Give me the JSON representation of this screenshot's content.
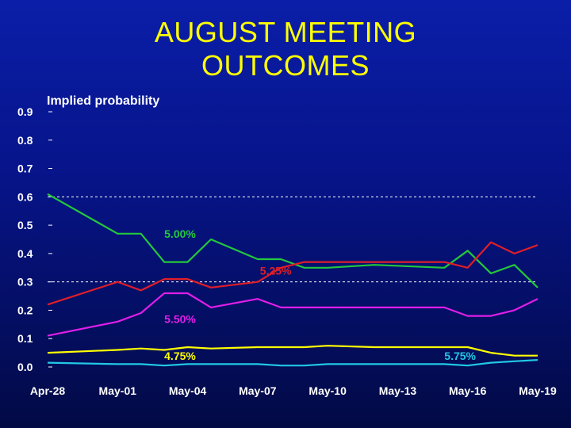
{
  "title_lines": [
    "AUGUST MEETING",
    "OUTCOMES"
  ],
  "chart_data": {
    "type": "line",
    "title": "AUGUST MEETING OUTCOMES",
    "ylabel": "Implied probability",
    "xlabel": "",
    "x_tick_labels": [
      "Apr-28",
      "May-01",
      "May-04",
      "May-07",
      "May-10",
      "May-13",
      "May-16",
      "May-19"
    ],
    "x_tick_days": [
      0,
      3,
      6,
      9,
      12,
      15,
      18,
      21
    ],
    "y_tick_labels": [
      "0.0",
      "0.1",
      "0.2",
      "0.3",
      "0.4",
      "0.5",
      "0.6",
      "0.7",
      "0.8",
      "0.9"
    ],
    "ylim": [
      0,
      0.9
    ],
    "xlim": [
      0,
      21
    ],
    "grid": "dashed horizontal at 0.3 and 0.6",
    "x_days": [
      0,
      3,
      4,
      5,
      6,
      7,
      9,
      10,
      11,
      12,
      14,
      17,
      18,
      19,
      20,
      21
    ],
    "series": [
      {
        "name": "5.00%",
        "color": "#22c83c",
        "values": [
          0.61,
          0.47,
          0.47,
          0.37,
          0.37,
          0.45,
          0.38,
          0.38,
          0.35,
          0.35,
          0.36,
          0.35,
          0.41,
          0.33,
          0.36,
          0.28
        ]
      },
      {
        "name": "5.25%",
        "color": "#e01e28",
        "values": [
          0.22,
          0.3,
          0.27,
          0.31,
          0.31,
          0.28,
          0.3,
          0.35,
          0.37,
          0.37,
          0.37,
          0.37,
          0.35,
          0.44,
          0.4,
          0.43
        ]
      },
      {
        "name": "5.50%",
        "color": "#e01ee8",
        "values": [
          0.11,
          0.16,
          0.19,
          0.26,
          0.26,
          0.21,
          0.24,
          0.21,
          0.21,
          0.21,
          0.21,
          0.21,
          0.18,
          0.18,
          0.2,
          0.24
        ]
      },
      {
        "name": "4.75%",
        "color": "#ffff00",
        "values": [
          0.05,
          0.06,
          0.065,
          0.06,
          0.07,
          0.065,
          0.07,
          0.07,
          0.07,
          0.075,
          0.07,
          0.07,
          0.07,
          0.05,
          0.04,
          0.04
        ]
      },
      {
        "name": "5.75%",
        "color": "#22c8e6",
        "values": [
          0.015,
          0.01,
          0.01,
          0.005,
          0.01,
          0.01,
          0.01,
          0.005,
          0.005,
          0.01,
          0.01,
          0.01,
          0.005,
          0.015,
          0.02,
          0.025
        ]
      }
    ],
    "series_labels": [
      {
        "text": "5.00%",
        "color": "#22c83c",
        "at_x": 5.0,
        "at_y": 0.455
      },
      {
        "text": "5.25%",
        "color": "#e01e28",
        "at_x": 9.1,
        "at_y": 0.325
      },
      {
        "text": "5.50%",
        "color": "#e01ee8",
        "at_x": 5.0,
        "at_y": 0.155
      },
      {
        "text": "4.75%",
        "color": "#ffff00",
        "at_x": 5.0,
        "at_y": 0.025
      },
      {
        "text": "5.75%",
        "color": "#22c8e6",
        "at_x": 17.0,
        "at_y": 0.025
      }
    ]
  }
}
